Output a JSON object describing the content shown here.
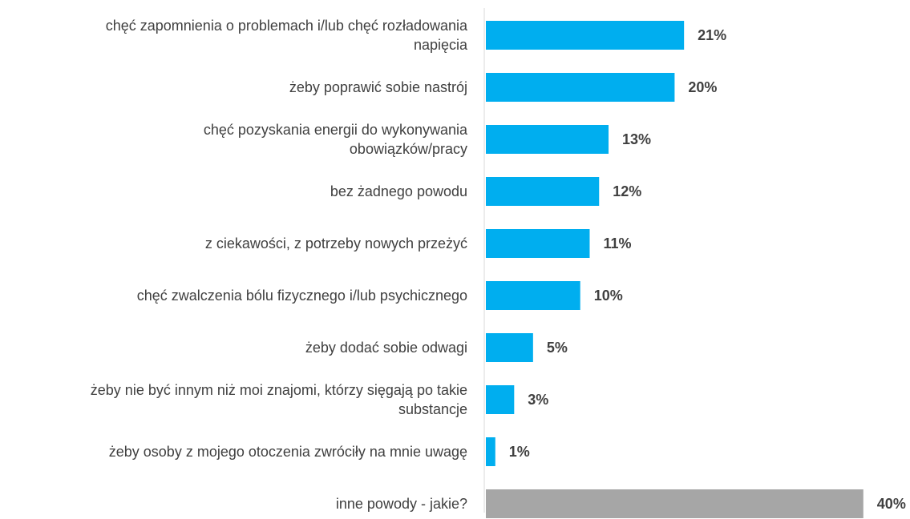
{
  "chart_data": {
    "type": "bar",
    "orientation": "horizontal",
    "title": "",
    "xlabel": "",
    "ylabel": "",
    "grid": false,
    "legend": "none",
    "value_suffix": "%",
    "xlim": [
      0,
      40
    ],
    "categories": [
      [
        "chęć zapomnienia o problemach i/lub chęć rozładowania",
        "napięcia"
      ],
      [
        "żeby poprawić sobie nastrój"
      ],
      [
        "chęć pozyskania energii do wykonywania",
        "obowiązków/pracy"
      ],
      [
        "bez żadnego powodu"
      ],
      [
        "z ciekawości, z potrzeby nowych przeżyć"
      ],
      [
        "chęć zwalczenia bólu fizycznego i/lub psychicznego"
      ],
      [
        "żeby dodać sobie odwagi"
      ],
      [
        "żeby nie być innym niż moi znajomi, którzy sięgają po takie",
        "substancje"
      ],
      [
        "żeby osoby z mojego otoczenia zwróciły na mnie uwagę"
      ],
      [
        "inne powody - jakie?"
      ]
    ],
    "values": [
      21,
      20,
      13,
      12,
      11,
      10,
      5,
      3,
      1,
      40
    ],
    "value_labels": [
      "21%",
      "20%",
      "13%",
      "12%",
      "11%",
      "10%",
      "5%",
      "3%",
      "1%",
      "40%"
    ],
    "colors": [
      "#00AEEF",
      "#00AEEF",
      "#00AEEF",
      "#00AEEF",
      "#00AEEF",
      "#00AEEF",
      "#00AEEF",
      "#00AEEF",
      "#00AEEF",
      "#A6A6A6"
    ],
    "axis_color": "#D9D9D9"
  }
}
